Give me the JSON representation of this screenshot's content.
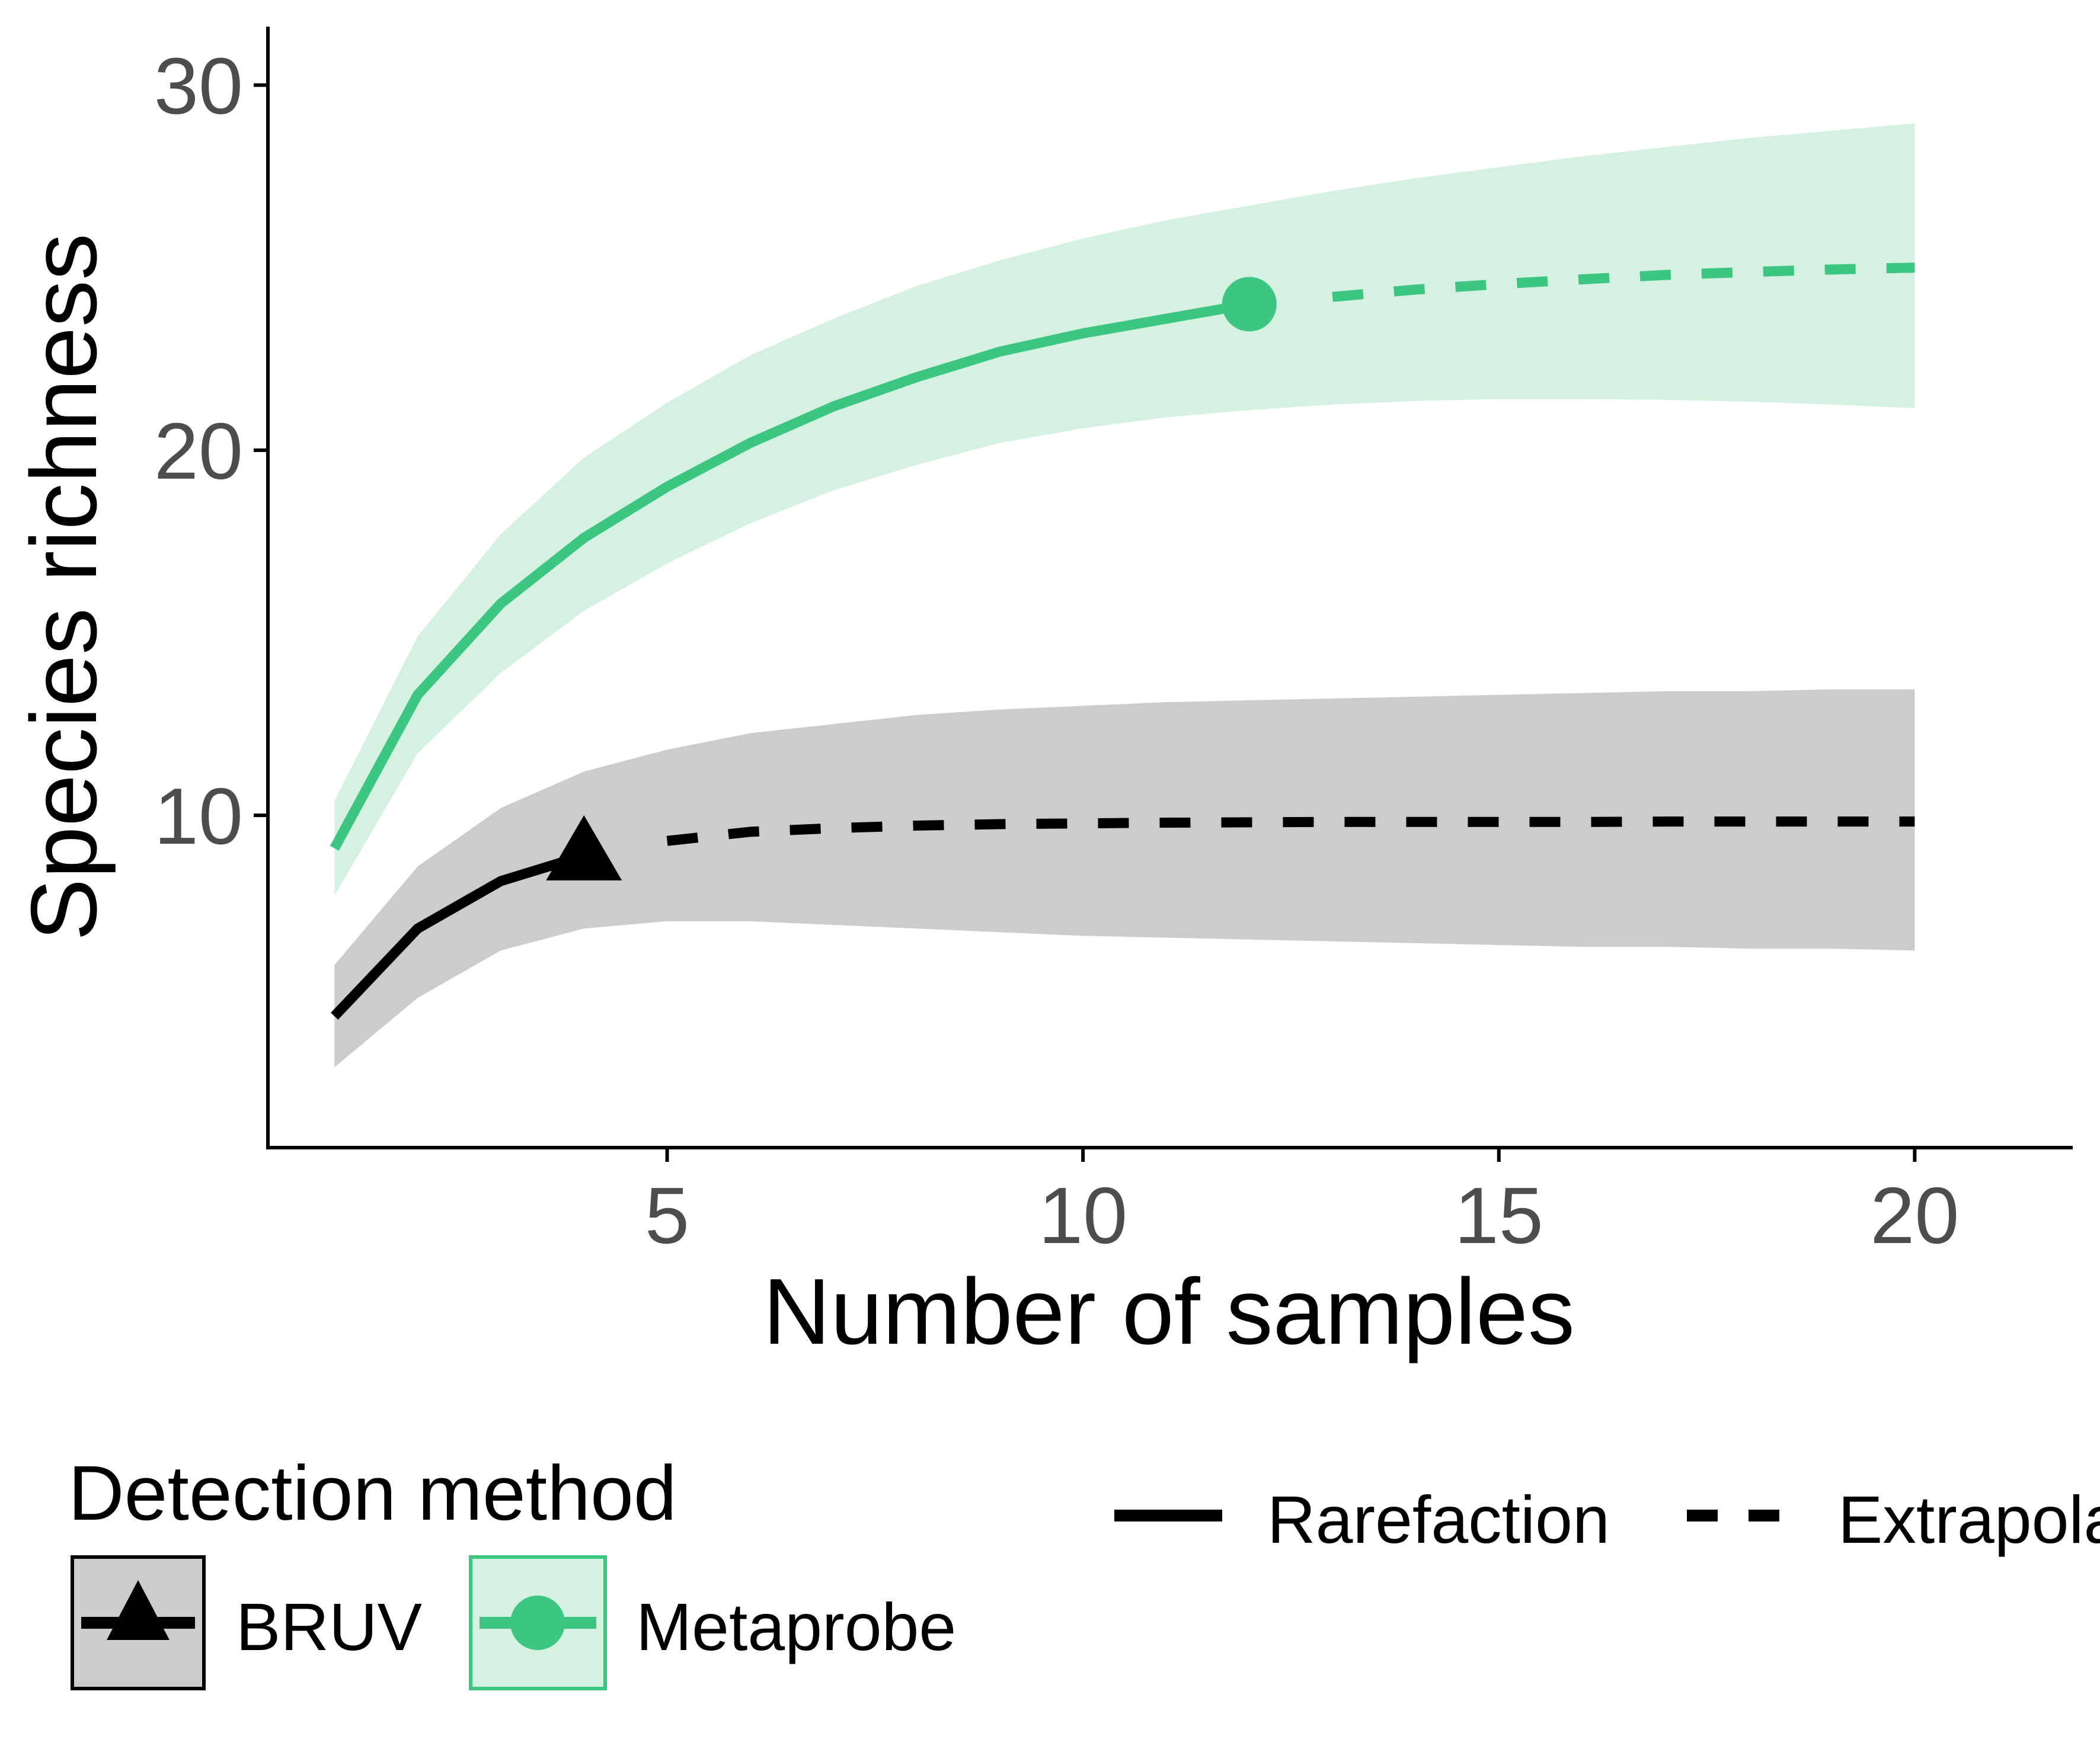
{
  "chart_data": {
    "type": "line",
    "xlabel": "Number of samples",
    "ylabel": "Species richness",
    "xlim": [
      0.2,
      21.9
    ],
    "ylim": [
      0.9,
      31.6
    ],
    "xticks": [
      5,
      10,
      15,
      20
    ],
    "yticks": [
      10,
      20,
      30
    ],
    "grid": false,
    "series": [
      {
        "name": "BRUV",
        "color": "#000000",
        "ribbon_color": "#cccccc",
        "marker": "triangle",
        "observed": {
          "x": 4,
          "y": 8.9
        },
        "rarefaction": {
          "x": [
            1,
            2,
            3,
            4
          ],
          "y": [
            4.5,
            6.9,
            8.2,
            8.9
          ],
          "lower": [
            3.1,
            5.0,
            6.3,
            6.9
          ],
          "upper": [
            5.9,
            8.6,
            10.2,
            11.2
          ]
        },
        "extrapolation": {
          "x": [
            5,
            6,
            7,
            8,
            9,
            10,
            11,
            12,
            13,
            14,
            15,
            16,
            17,
            18,
            19,
            20
          ],
          "y": [
            9.3,
            9.55,
            9.65,
            9.72,
            9.76,
            9.78,
            9.8,
            9.81,
            9.82,
            9.82,
            9.82,
            9.82,
            9.83,
            9.83,
            9.83,
            9.83
          ],
          "lower": [
            7.1,
            7.1,
            7.0,
            6.9,
            6.8,
            6.7,
            6.65,
            6.6,
            6.55,
            6.5,
            6.45,
            6.4,
            6.4,
            6.35,
            6.35,
            6.3
          ],
          "upper": [
            11.8,
            12.25,
            12.5,
            12.75,
            12.9,
            13.0,
            13.1,
            13.15,
            13.2,
            13.25,
            13.3,
            13.35,
            13.4,
            13.4,
            13.45,
            13.45
          ]
        }
      },
      {
        "name": "Metaprobe",
        "color": "#3cc681",
        "ribbon_color": "#d5f1e2",
        "marker": "circle",
        "observed": {
          "x": 12,
          "y": 24.0
        },
        "rarefaction": {
          "x": [
            1,
            2,
            3,
            4,
            5,
            6,
            7,
            8,
            9,
            10,
            11,
            12
          ],
          "y": [
            9.1,
            13.3,
            15.8,
            17.6,
            19.0,
            20.2,
            21.2,
            22.0,
            22.7,
            23.2,
            23.6,
            24.0
          ],
          "lower": [
            7.8,
            11.7,
            13.9,
            15.6,
            16.9,
            18.0,
            18.9,
            19.6,
            20.2,
            20.6,
            20.9,
            21.1
          ],
          "upper": [
            10.4,
            14.9,
            17.7,
            19.8,
            21.3,
            22.6,
            23.6,
            24.5,
            25.2,
            25.8,
            26.3,
            26.7
          ]
        },
        "extrapolation": {
          "x": [
            13,
            14,
            15,
            16,
            17,
            18,
            19,
            20
          ],
          "y": [
            24.2,
            24.4,
            24.55,
            24.68,
            24.8,
            24.88,
            24.95,
            25.0
          ],
          "lower": [
            21.25,
            21.35,
            21.4,
            21.4,
            21.38,
            21.33,
            21.25,
            21.15
          ],
          "upper": [
            27.1,
            27.45,
            27.75,
            28.05,
            28.3,
            28.55,
            28.75,
            28.95
          ]
        }
      }
    ],
    "legend": {
      "position": "bottom",
      "title": "Detection method",
      "method_entries": [
        "BRUV",
        "Metaprobe"
      ],
      "linetype_entries": [
        "Rarefaction",
        "Extrapolation"
      ]
    }
  }
}
